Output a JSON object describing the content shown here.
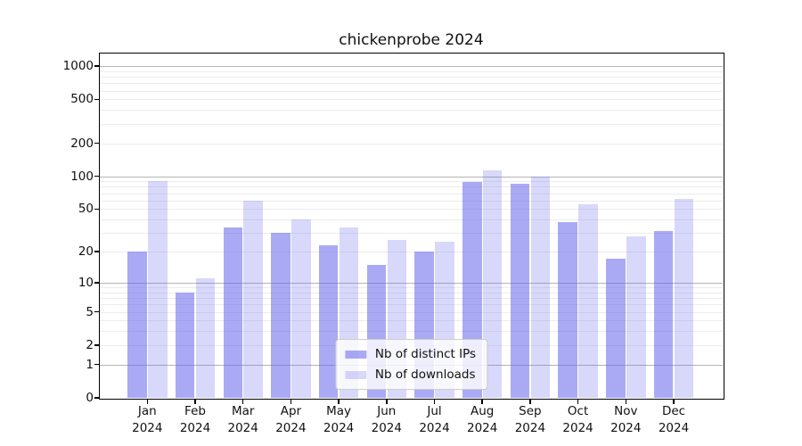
{
  "chart": {
    "title": "chickenprobe 2024",
    "legend": {
      "ips_label": "Nb of distinct IPs",
      "downloads_label": "Nb of downloads"
    }
  },
  "chart_data": {
    "type": "bar",
    "title": "chickenprobe 2024",
    "categories": [
      "Jan 2024",
      "Feb 2024",
      "Mar 2024",
      "Apr 2024",
      "May 2024",
      "Jun 2024",
      "Jul 2024",
      "Aug 2024",
      "Sep 2024",
      "Oct 2024",
      "Nov 2024",
      "Dec 2024"
    ],
    "series": [
      {
        "name": "Nb of distinct IPs",
        "color": "rgba(100,100,235,0.55)",
        "values": [
          20,
          8,
          34,
          30,
          23,
          15,
          20,
          89,
          86,
          38,
          17,
          31
        ]
      },
      {
        "name": "Nb of downloads",
        "color": "rgba(100,100,235,0.25)",
        "values": [
          90,
          11,
          60,
          40,
          34,
          26,
          25,
          113,
          99,
          55,
          28,
          62
        ]
      }
    ],
    "xlabel": "",
    "ylabel": "",
    "yscale": "log1p",
    "ylim": [
      0,
      1300
    ],
    "yticks": [
      0,
      1,
      2,
      5,
      10,
      20,
      50,
      100,
      200,
      500,
      1000
    ],
    "grid": true,
    "legend_position": "lower center"
  }
}
